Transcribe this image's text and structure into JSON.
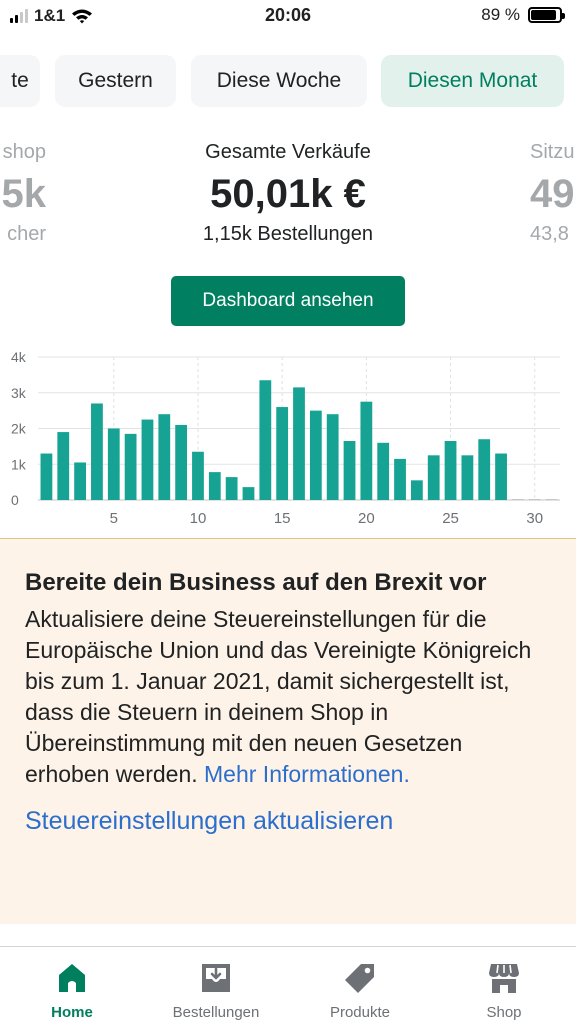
{
  "status_bar": {
    "carrier": "1&1",
    "time": "20:06",
    "battery": "89 %",
    "battery_level": 0.89
  },
  "tabs": [
    {
      "label": "te",
      "active": false
    },
    {
      "label": "Gestern",
      "active": false
    },
    {
      "label": "Diese Woche",
      "active": false
    },
    {
      "label": "Diesen Monat",
      "active": true
    }
  ],
  "metrics": {
    "left": {
      "label": "shop",
      "value": "5k",
      "sub": "cher"
    },
    "center": {
      "label": "Gesamte Verkäufe",
      "value": "50,01k €",
      "sub": "1,15k Bestellungen"
    },
    "right": {
      "label": "Sitzu",
      "value": "49",
      "sub": "43,8"
    }
  },
  "dashboard_button": "Dashboard ansehen",
  "chart_data": {
    "type": "bar",
    "x": [
      1,
      2,
      3,
      4,
      5,
      6,
      7,
      8,
      9,
      10,
      11,
      12,
      13,
      14,
      15,
      16,
      17,
      18,
      19,
      20,
      21,
      22,
      23,
      24,
      25,
      26,
      27,
      28,
      29,
      30,
      31
    ],
    "values": [
      1300,
      1900,
      1050,
      2700,
      2000,
      1850,
      2250,
      2400,
      2100,
      1350,
      780,
      640,
      360,
      3350,
      2600,
      3150,
      2500,
      2400,
      1650,
      2750,
      1600,
      1150,
      550,
      1250,
      1650,
      1250,
      1700,
      1300,
      0,
      0,
      0
    ],
    "xticks": [
      "5",
      "10",
      "15",
      "20",
      "25",
      "30"
    ],
    "xtick_values": [
      5,
      10,
      15,
      20,
      25,
      30
    ],
    "yticks": [
      "0",
      "1k",
      "2k",
      "3k",
      "4k"
    ],
    "ytick_values": [
      0,
      1000,
      2000,
      3000,
      4000
    ],
    "ylim": [
      0,
      4000
    ],
    "bar_color": "#16a394",
    "grid": true
  },
  "banner": {
    "title": "Bereite dein Business auf den Brexit vor",
    "text": "Aktualisiere deine Steuereinstellungen für die Europäische Union und das Vereinigte Königreich bis zum 1. Januar 2021, damit sichergestellt ist, dass die Steuern in deinem Shop in Übereinstimmung mit den neuen Gesetzen erhoben werden.",
    "link": "Mehr Informationen.",
    "action": "Steuereinstellungen aktualisieren"
  },
  "nav": [
    {
      "label": "Home",
      "icon": "home-icon",
      "active": true
    },
    {
      "label": "Bestellungen",
      "icon": "orders-icon",
      "active": false
    },
    {
      "label": "Produkte",
      "icon": "tag-icon",
      "active": false
    },
    {
      "label": "Shop",
      "icon": "store-icon",
      "active": false
    }
  ],
  "colors": {
    "accent": "#008060",
    "active_tab_bg": "#e3f1ec",
    "banner_bg": "#fdf3e8",
    "link": "#2c6ecb"
  }
}
